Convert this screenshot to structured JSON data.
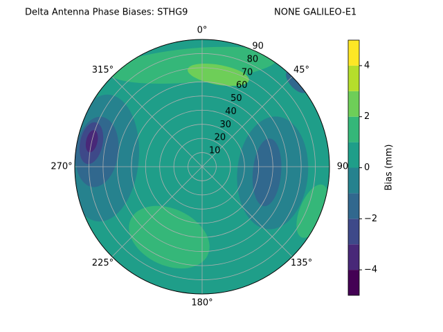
{
  "chart_data": {
    "type": "polar_contour",
    "title": "Delta Antenna Phase Biases: STHG9",
    "subtitle": "NONE GALILEO-E1",
    "colorbar_label": "Bias (mm)",
    "levels": [
      -5,
      -4,
      -3,
      -2,
      -1,
      0,
      1,
      2,
      3,
      4,
      5
    ],
    "colors": [
      "#440154",
      "#482878",
      "#3e4989",
      "#31688e",
      "#26828e",
      "#1f9e89",
      "#35b779",
      "#6ece58",
      "#b5de2b",
      "#fde725"
    ],
    "colorbar_ticks": [
      {
        "value": -4,
        "label": "−4"
      },
      {
        "value": -2,
        "label": "−2"
      },
      0,
      2,
      4
    ],
    "rlim": [
      0,
      90
    ],
    "rticks": [
      10,
      20,
      30,
      40,
      50,
      60,
      70,
      80,
      90
    ],
    "theta_ticks": [
      {
        "value": 0,
        "label": "0°"
      },
      {
        "value": 45,
        "label": "45°"
      },
      90,
      {
        "value": 135,
        "label": "135°"
      },
      {
        "value": 180,
        "label": "180°"
      },
      {
        "value": 225,
        "label": "225°"
      },
      {
        "value": 270,
        "label": "270°"
      },
      {
        "value": 315,
        "label": "315°"
      }
    ],
    "grid": true,
    "base_value": 0.5,
    "regions": [
      {
        "value": 1.5,
        "azimuth": 355,
        "zenith": 72,
        "along": 12,
        "across": 60
      },
      {
        "value": 2.5,
        "azimuth": 10,
        "zenith": 66,
        "along": 7,
        "across": 22
      },
      {
        "value": 1.5,
        "azimuth": 205,
        "zenith": 55,
        "along": 20,
        "across": 30
      },
      {
        "value": 1.5,
        "azimuth": 112,
        "zenith": 84,
        "along": 9,
        "across": 20
      },
      {
        "value": -0.5,
        "azimuth": 275,
        "zenith": 70,
        "along": 25,
        "across": 45
      },
      {
        "value": -1.5,
        "azimuth": 278,
        "zenith": 75,
        "along": 15,
        "across": 25
      },
      {
        "value": -2.5,
        "azimuth": 282,
        "zenith": 80,
        "along": 8,
        "across": 15
      },
      {
        "value": -3.5,
        "azimuth": 283,
        "zenith": 80,
        "along": 4,
        "across": 8
      },
      {
        "value": -0.5,
        "azimuth": 95,
        "zenith": 50,
        "along": 25,
        "across": 40
      },
      {
        "value": -1.5,
        "azimuth": 95,
        "zenith": 46,
        "along": 10,
        "across": 24
      },
      {
        "value": -1.5,
        "azimuth": 48,
        "zenith": 90,
        "along": 5,
        "across": 10
      }
    ]
  }
}
